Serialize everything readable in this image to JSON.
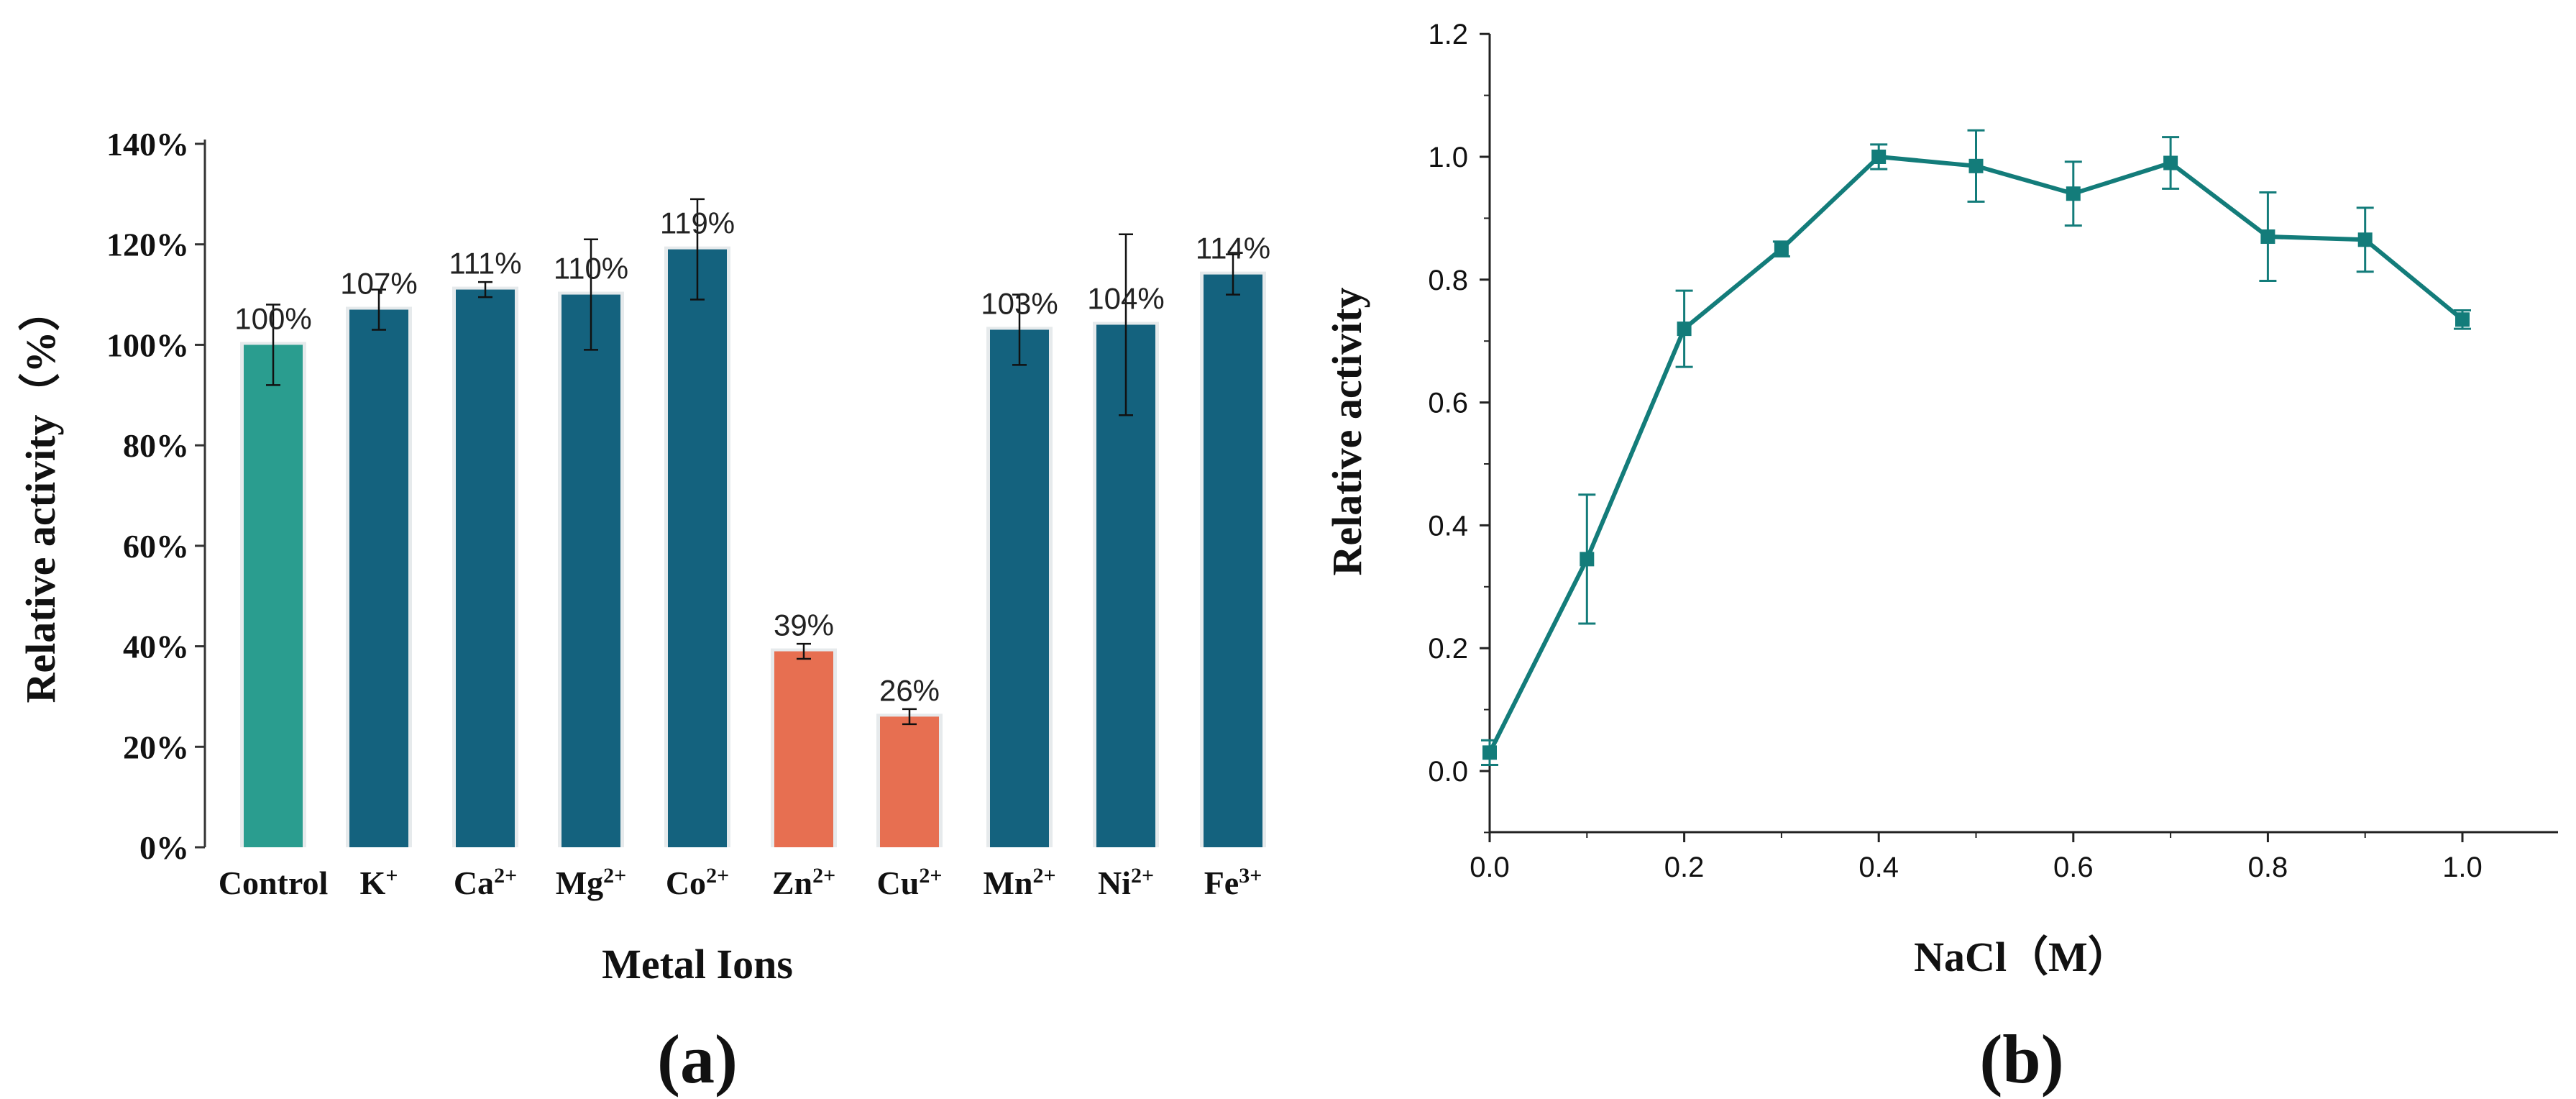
{
  "colors": {
    "control": "#2a9d8f",
    "normal": "#14627e",
    "inhibited": "#e76f51",
    "line": "#137c7a",
    "axis": "#333333"
  },
  "chart_data": [
    {
      "type": "bar",
      "panel_label": "(a)",
      "title": "",
      "xlabel": "Metal Ions",
      "ylabel": "Relative activity（%）",
      "ylim": [
        0,
        140
      ],
      "yticks": [
        "0%",
        "20%",
        "40%",
        "60%",
        "80%",
        "100%",
        "120%",
        "140%"
      ],
      "categories": [
        {
          "base": "Control",
          "sup": ""
        },
        {
          "base": "K",
          "sup": "+"
        },
        {
          "base": "Ca",
          "sup": "2+"
        },
        {
          "base": "Mg",
          "sup": "2+"
        },
        {
          "base": "Co",
          "sup": "2+"
        },
        {
          "base": "Zn",
          "sup": "2+"
        },
        {
          "base": "Cu",
          "sup": "2+"
        },
        {
          "base": "Mn",
          "sup": "2+"
        },
        {
          "base": "Ni",
          "sup": "2+"
        },
        {
          "base": "Fe",
          "sup": "3+"
        }
      ],
      "values": [
        100,
        107,
        111,
        110,
        119,
        39,
        26,
        103,
        104,
        114
      ],
      "errors": [
        8,
        4,
        1.5,
        11,
        10,
        1.5,
        1.5,
        7,
        18,
        4
      ],
      "value_labels": [
        "100%",
        "107%",
        "111%",
        "110%",
        "119%",
        "39%",
        "26%",
        "103%",
        "104%",
        "114%"
      ],
      "groups": [
        "control",
        "normal",
        "normal",
        "normal",
        "normal",
        "inhibited",
        "inhibited",
        "normal",
        "normal",
        "normal"
      ],
      "grid": false,
      "gap_after_index": 6
    },
    {
      "type": "line",
      "panel_label": "(b)",
      "title": "",
      "xlabel": "NaCl（M）",
      "ylabel": "Relative activity",
      "xlim": [
        0,
        1.12
      ],
      "ylim": [
        -0.1,
        1.2
      ],
      "xticks": [
        "0.0",
        "0.2",
        "0.4",
        "0.6",
        "0.8",
        "1.0"
      ],
      "xtick_values": [
        0,
        0.2,
        0.4,
        0.6,
        0.8,
        1.0
      ],
      "yticks": [
        "0.0",
        "0.2",
        "0.4",
        "0.6",
        "0.8",
        "1.0",
        "1.2"
      ],
      "ytick_values": [
        0,
        0.2,
        0.4,
        0.6,
        0.8,
        1.0,
        1.2
      ],
      "series": [
        {
          "name": "Relative activity",
          "x": [
            0,
            0.1,
            0.2,
            0.3,
            0.4,
            0.5,
            0.6,
            0.7,
            0.8,
            0.9,
            1.0
          ],
          "values": [
            0.03,
            0.345,
            0.72,
            0.85,
            1.0,
            0.985,
            0.94,
            0.99,
            0.87,
            0.865,
            0.735
          ],
          "errors": [
            0.02,
            0.105,
            0.062,
            0.012,
            0.02,
            0.058,
            0.052,
            0.042,
            0.072,
            0.052,
            0.015
          ]
        }
      ],
      "grid": false
    }
  ]
}
